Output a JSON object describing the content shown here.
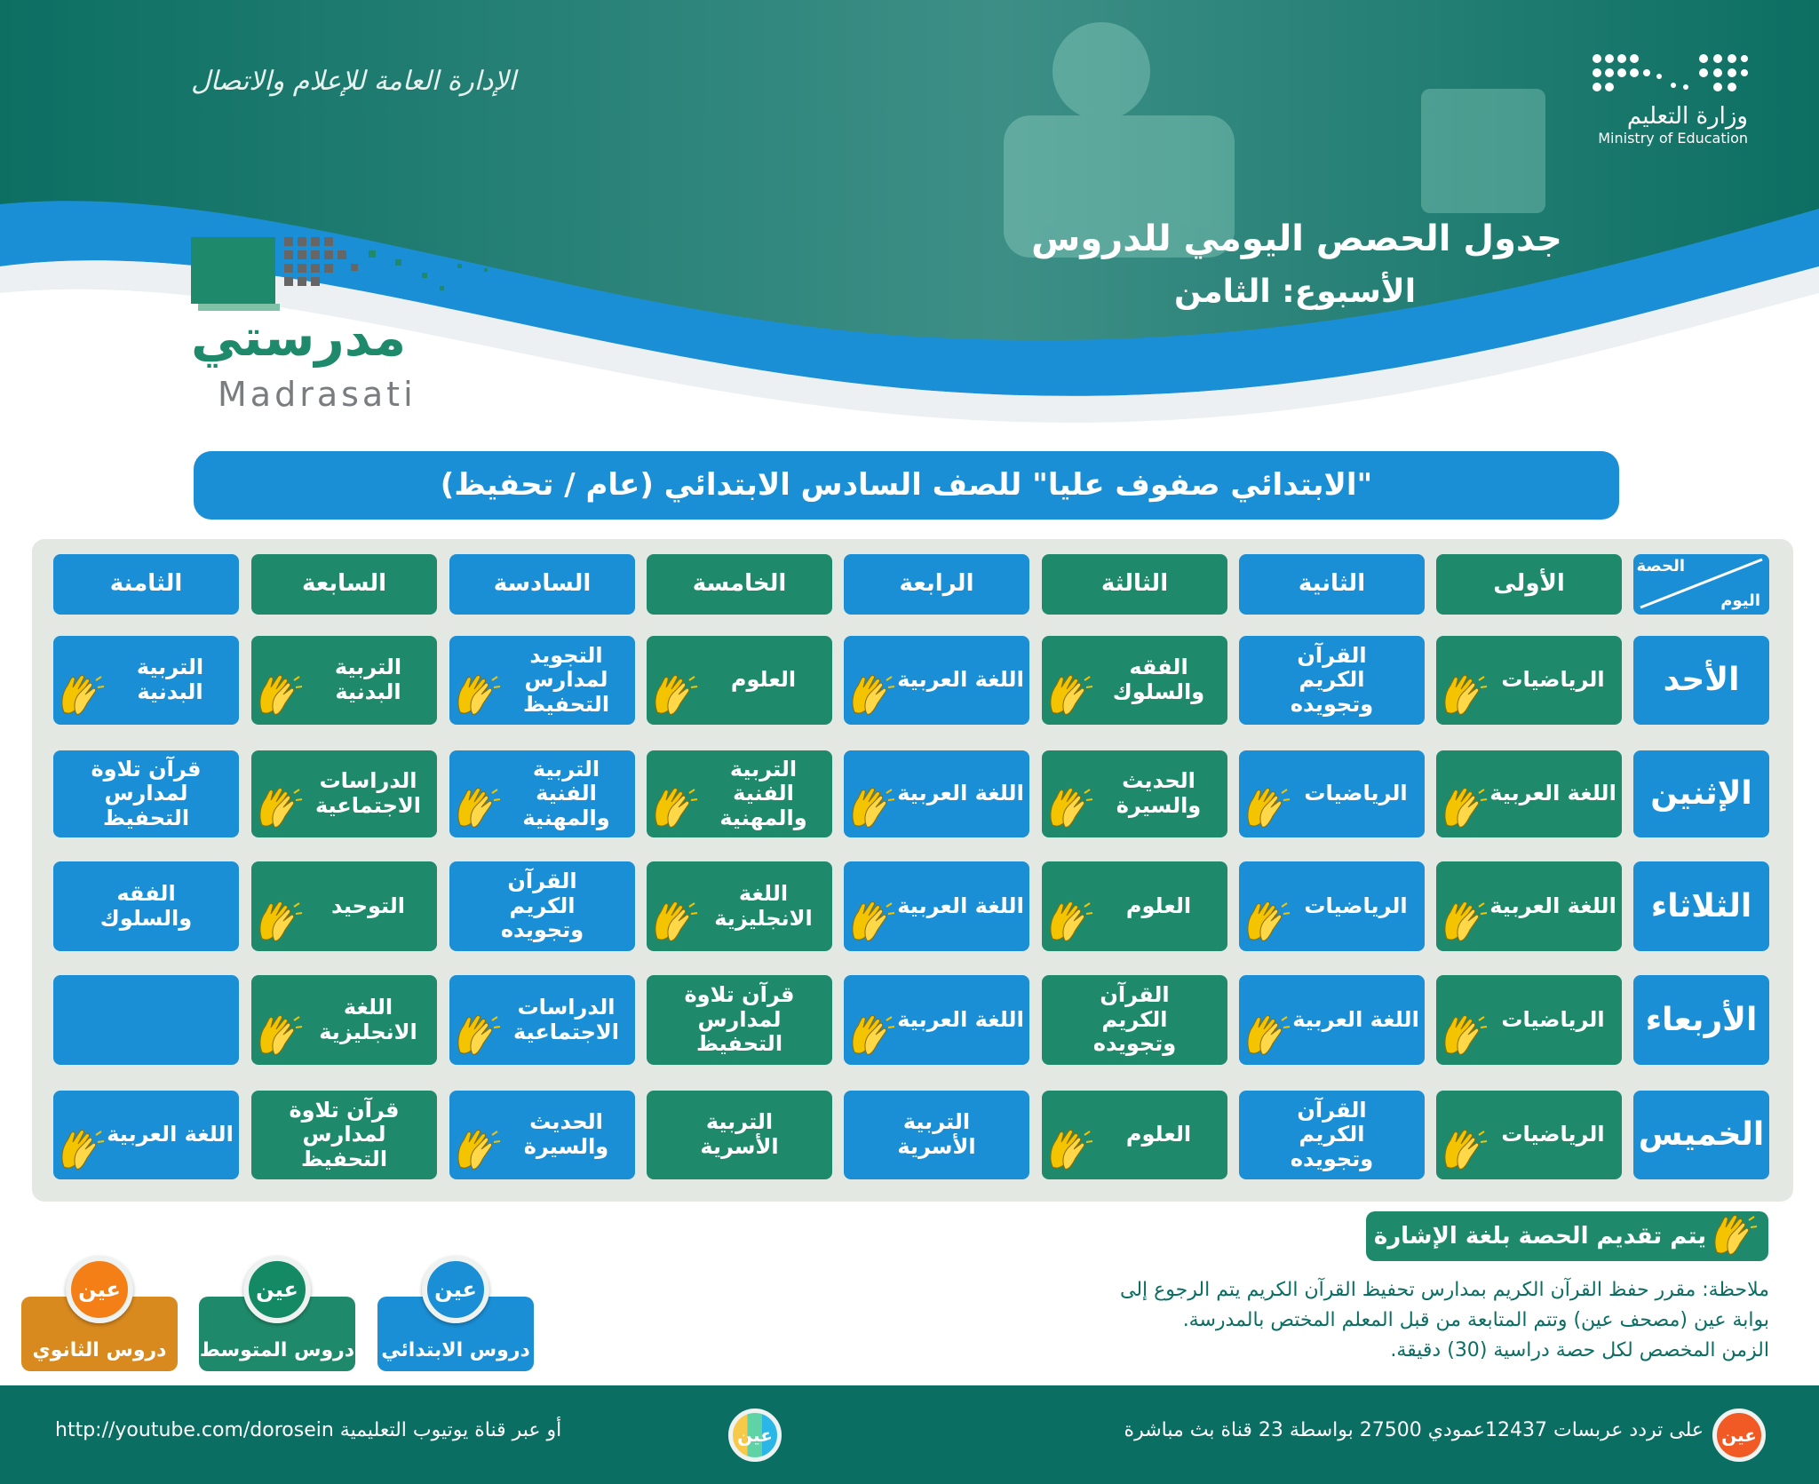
{
  "header": {
    "calligraphy": "الإدارة العامة للإعلام والاتصال",
    "ministry_ar": "وزارة التعليم",
    "ministry_en": "Ministry of Education",
    "title": "جدول الحصص اليومي للدروس",
    "week": "الأسبوع: الثامن",
    "logo_ar": "مدرستي",
    "logo_en": "Madrasati"
  },
  "banner": "\"الابتدائي صفوف عليا\" للصف السادس الابتدائي (عام / تحفيظ)",
  "colors": {
    "green": "#1f8a6b",
    "blue": "#1a8fd6",
    "teal": "#0a6e63",
    "orange": "#d98a1e",
    "hand": "#f5c400"
  },
  "schedule": {
    "corner_top": "الحصة",
    "corner_bottom": "اليوم",
    "periods": [
      "الأولى",
      "الثانية",
      "الثالثة",
      "الرابعة",
      "الخامسة",
      "السادسة",
      "السابعة",
      "الثامنة"
    ],
    "period_colors": [
      "green",
      "blue",
      "green",
      "blue",
      "green",
      "blue",
      "green",
      "blue"
    ],
    "days": [
      {
        "day": "الأحد",
        "cells": [
          {
            "subject": "الرياضيات",
            "sign": true
          },
          {
            "subject": "القرآن الكريم وتجويده",
            "sign": false
          },
          {
            "subject": "الفقه والسلوك",
            "sign": true
          },
          {
            "subject": "اللغة العربية",
            "sign": true
          },
          {
            "subject": "العلوم",
            "sign": true
          },
          {
            "subject": "التجويد لمدارس التحفيظ",
            "sign": true
          },
          {
            "subject": "التربية البدنية",
            "sign": true
          },
          {
            "subject": "التربية البدنية",
            "sign": true
          }
        ]
      },
      {
        "day": "الإثنين",
        "cells": [
          {
            "subject": "اللغة العربية",
            "sign": true
          },
          {
            "subject": "الرياضيات",
            "sign": true
          },
          {
            "subject": "الحديث والسيرة",
            "sign": true
          },
          {
            "subject": "اللغة العربية",
            "sign": true
          },
          {
            "subject": "التربية الفنية والمهنية",
            "sign": true
          },
          {
            "subject": "التربية الفنية والمهنية",
            "sign": true
          },
          {
            "subject": "الدراسات الاجتماعية",
            "sign": true
          },
          {
            "subject": "قرآن تلاوة لمدارس التحفيظ",
            "sign": false
          }
        ]
      },
      {
        "day": "الثلاثاء",
        "cells": [
          {
            "subject": "اللغة العربية",
            "sign": true
          },
          {
            "subject": "الرياضيات",
            "sign": true
          },
          {
            "subject": "العلوم",
            "sign": true
          },
          {
            "subject": "اللغة العربية",
            "sign": true
          },
          {
            "subject": "اللغة الانجليزية",
            "sign": true
          },
          {
            "subject": "القرآن الكريم وتجويده",
            "sign": false
          },
          {
            "subject": "التوحيد",
            "sign": true
          },
          {
            "subject": "الفقه والسلوك",
            "sign": false
          }
        ]
      },
      {
        "day": "الأربعاء",
        "cells": [
          {
            "subject": "الرياضيات",
            "sign": true
          },
          {
            "subject": "اللغة العربية",
            "sign": true
          },
          {
            "subject": "القرآن الكريم وتجويده",
            "sign": false
          },
          {
            "subject": "اللغة العربية",
            "sign": true
          },
          {
            "subject": "قرآن تلاوة لمدارس التحفيظ",
            "sign": false
          },
          {
            "subject": "الدراسات الاجتماعية",
            "sign": true
          },
          {
            "subject": "اللغة الانجليزية",
            "sign": true
          },
          {
            "subject": "",
            "sign": false
          }
        ]
      },
      {
        "day": "الخميس",
        "cells": [
          {
            "subject": "الرياضيات",
            "sign": true
          },
          {
            "subject": "القرآن الكريم وتجويده",
            "sign": false
          },
          {
            "subject": "العلوم",
            "sign": true
          },
          {
            "subject": "التربية الأسرية",
            "sign": false
          },
          {
            "subject": "التربية الأسرية",
            "sign": false
          },
          {
            "subject": "الحديث والسيرة",
            "sign": true
          },
          {
            "subject": "قرآن تلاوة لمدارس التحفيظ",
            "sign": false
          },
          {
            "subject": "اللغة العربية",
            "sign": true
          }
        ]
      }
    ]
  },
  "legend": "يتم تقديم الحصة بلغة الإشارة",
  "notes": [
    "ملاحظة: مقرر حفظ القرآن الكريم بمدارس تحفيظ القرآن الكريم يتم الرجوع إلى",
    "بوابة عين (مصحف عين) وتتم المتابعة من قبل المعلم المختص بالمدرسة.",
    "الزمن المخصص لكل حصة دراسية (30) دقيقة."
  ],
  "channels": [
    {
      "badge": "عين",
      "label": "دروس الابتدائي"
    },
    {
      "badge": "عين",
      "label": "دروس المتوسط"
    },
    {
      "badge": "عين",
      "label": "دروس الثانوي"
    }
  ],
  "footer": {
    "badge": "عين",
    "satellite": "على تردد عربسات 12437عمودي 27500 بواسطة 23 قناة بث مباشرة",
    "youtube": "أو عبر قناة يوتيوب التعليمية http://youtube.com/dorosein"
  }
}
